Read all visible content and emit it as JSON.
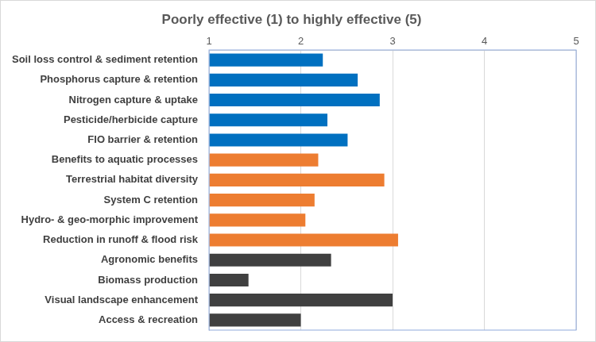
{
  "chart_data": {
    "type": "bar",
    "orientation": "horizontal",
    "title": "Poorly effective (1) to highly effective (5)",
    "categories": [
      "Soil loss control & sediment retention",
      "Phosphorus capture & retention",
      "Nitrogen capture & uptake",
      "Pesticide/herbicide capture",
      "FIO barrier & retention",
      "Benefits to aquatic processes",
      "Terrestrial habitat diversity",
      "System C retention",
      "Hydro- & geo-morphic improvement",
      "Reduction in runoff & flood risk",
      "Agronomic benefits",
      "Biomass production",
      "Visual landscape enhancement",
      "Access & recreation"
    ],
    "values": [
      2.24,
      2.62,
      2.86,
      2.29,
      2.51,
      2.19,
      2.91,
      2.15,
      2.05,
      3.06,
      2.33,
      1.43,
      3.0,
      2.0
    ],
    "colors": [
      "#0070c0",
      "#0070c0",
      "#0070c0",
      "#0070c0",
      "#0070c0",
      "#ed7d31",
      "#ed7d31",
      "#ed7d31",
      "#ed7d31",
      "#ed7d31",
      "#404040",
      "#404040",
      "#404040",
      "#404040"
    ],
    "xlim": [
      1,
      5
    ],
    "xticks": [
      1,
      2,
      3,
      4,
      5
    ],
    "grid": true
  }
}
